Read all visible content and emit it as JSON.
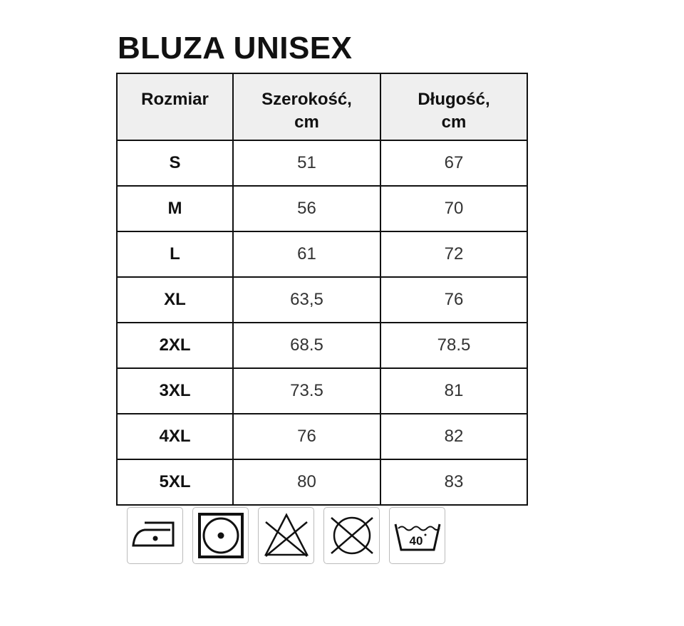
{
  "title": "BLUZA UNISEX",
  "table": {
    "headers": [
      "Rozmiar",
      "Szerokość,\ncm",
      "Długość,\ncm"
    ],
    "rows": [
      [
        "S",
        "51",
        "67"
      ],
      [
        "M",
        "56",
        "70"
      ],
      [
        "L",
        "61",
        "72"
      ],
      [
        "XL",
        "63,5",
        "76"
      ],
      [
        "2XL",
        "68.5",
        "78.5"
      ],
      [
        "3XL",
        "73.5",
        "81"
      ],
      [
        "4XL",
        "76",
        "82"
      ],
      [
        "5XL",
        "80",
        "83"
      ]
    ]
  },
  "care_icons": [
    {
      "name": "iron-low-temp-icon"
    },
    {
      "name": "tumble-dry-normal-icon"
    },
    {
      "name": "do-not-bleach-icon"
    },
    {
      "name": "do-not-dry-clean-icon"
    },
    {
      "name": "wash-40-icon",
      "label": "40"
    }
  ]
}
